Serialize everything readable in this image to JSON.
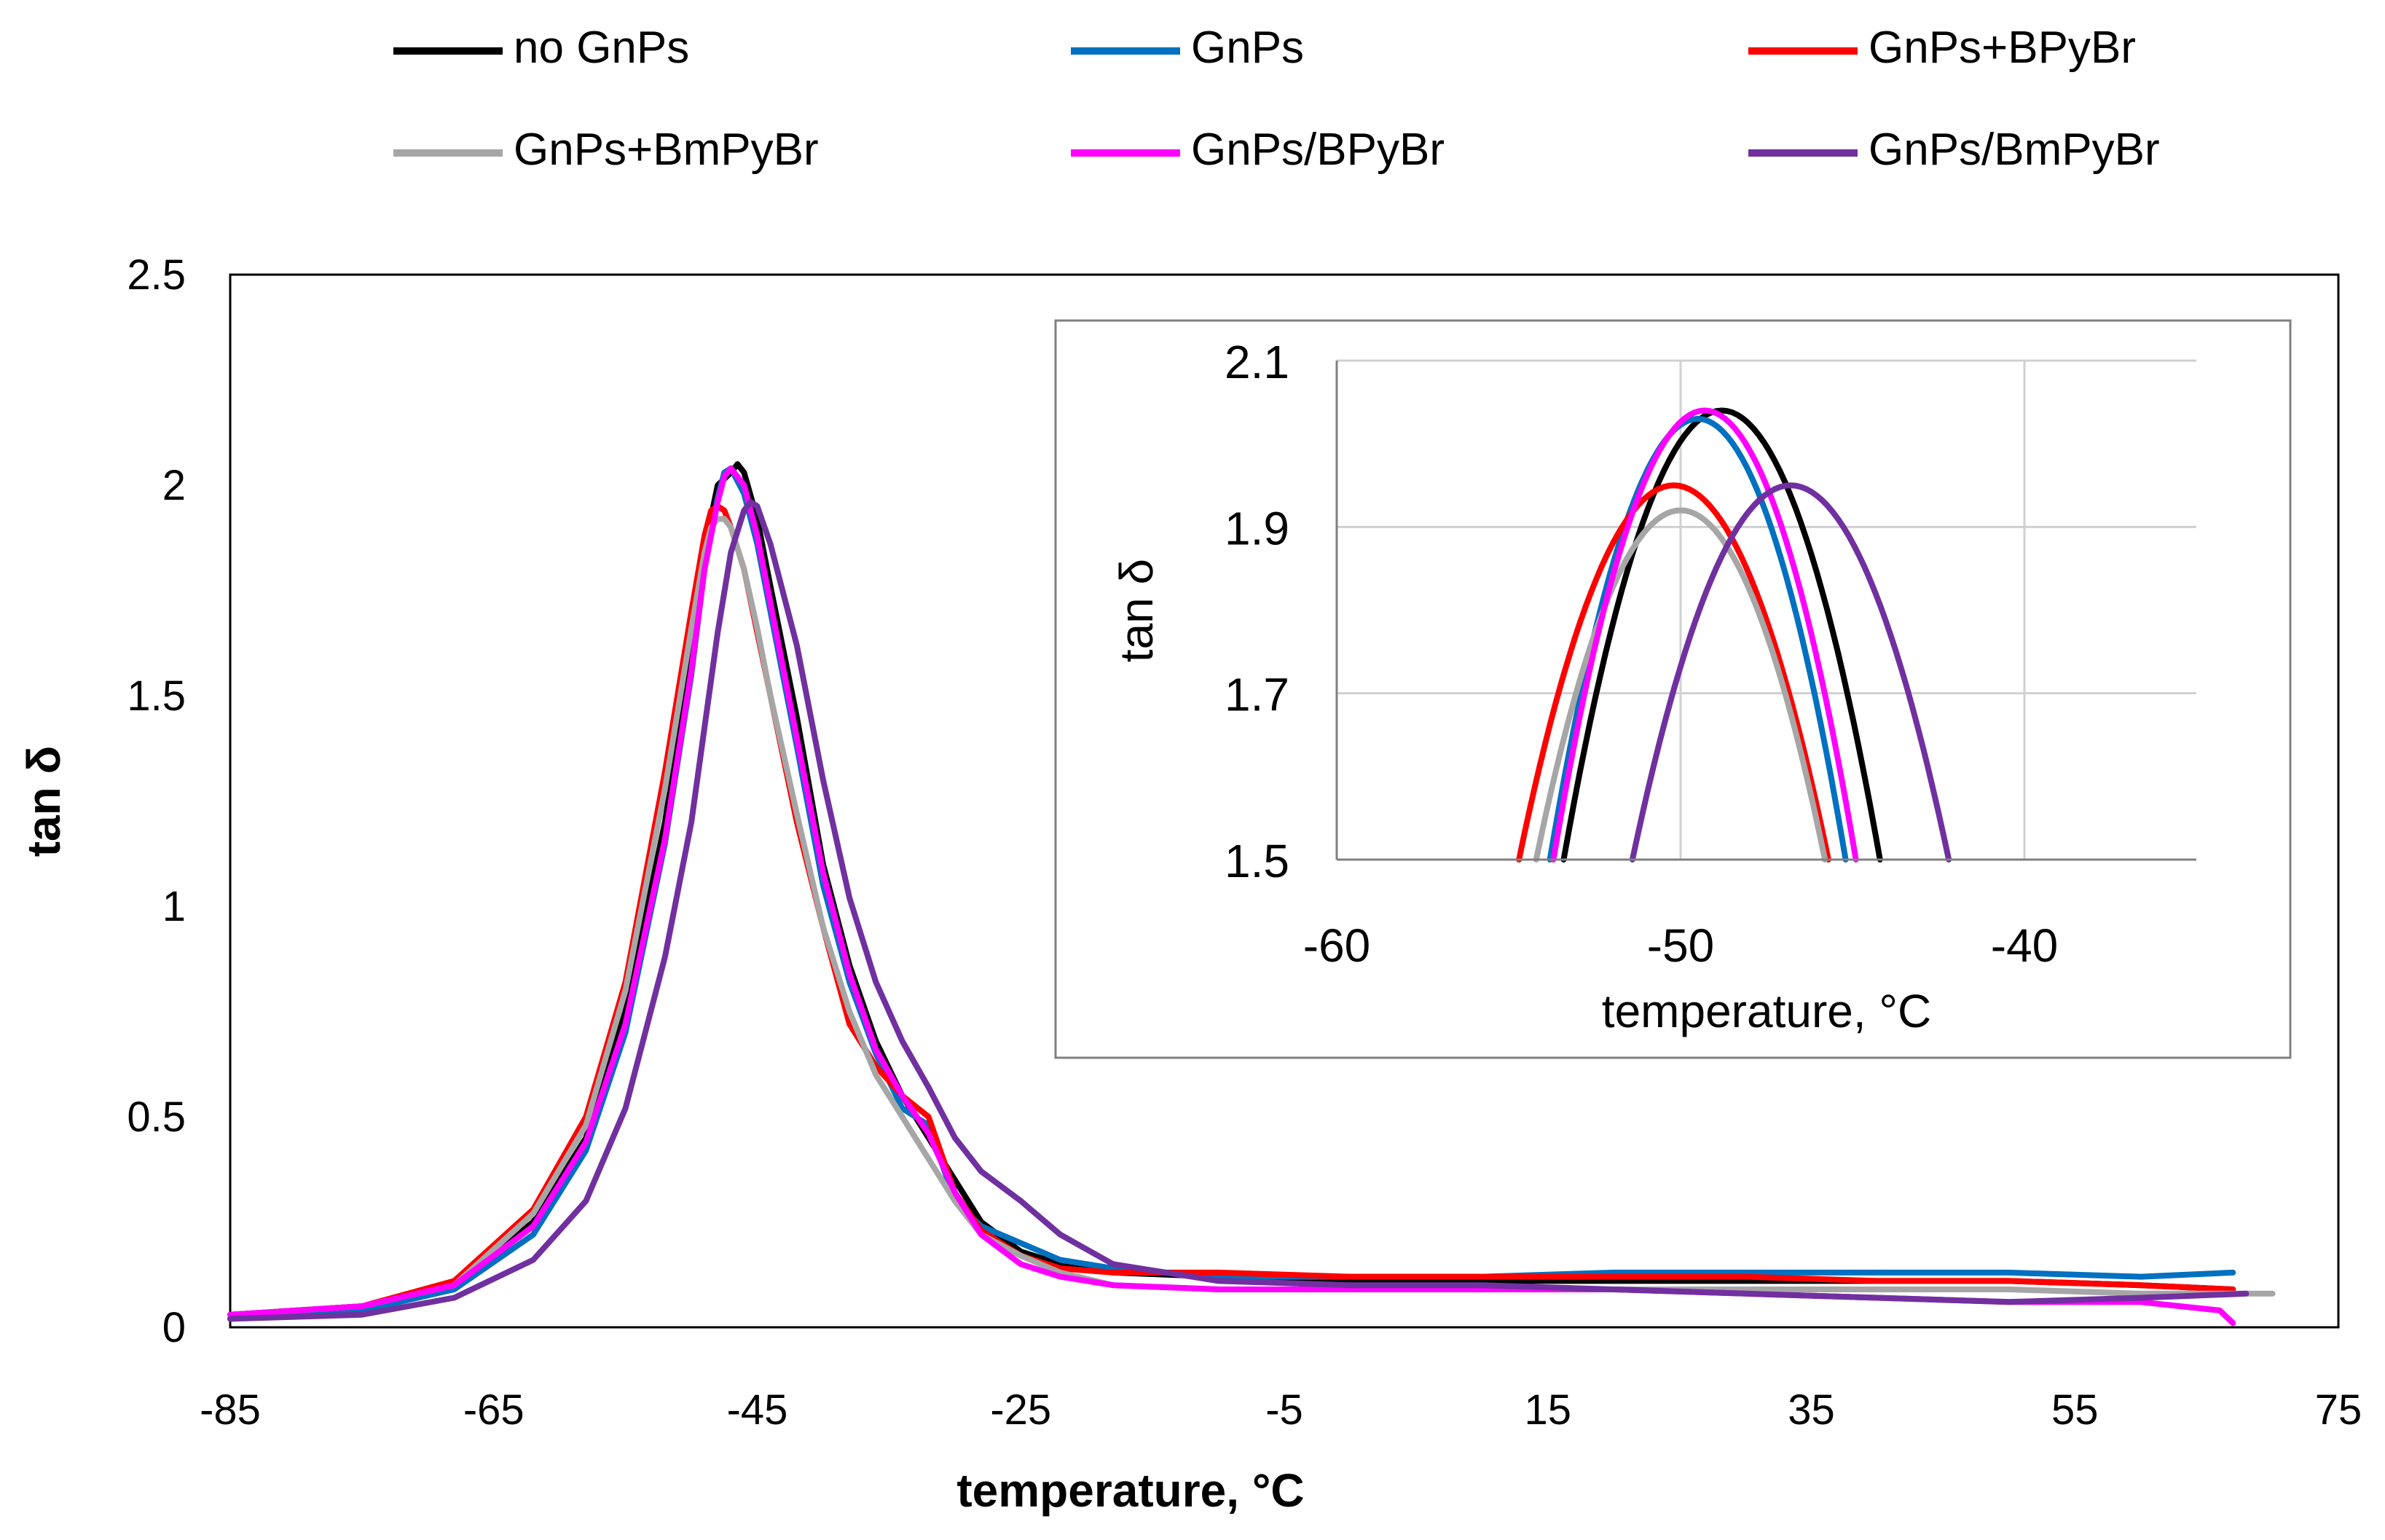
{
  "chart_data": [
    {
      "id": "main",
      "type": "line",
      "title": "",
      "xlabel": "temperature, °C",
      "ylabel": "tan δ",
      "xlim": [
        -85,
        75
      ],
      "ylim": [
        0,
        2.5
      ],
      "x_ticks": [
        "-85",
        "-65",
        "-45",
        "-25",
        "-5",
        "15",
        "35",
        "55",
        "75"
      ],
      "y_ticks": [
        "0",
        "0.5",
        "1",
        "1.5",
        "2",
        "2.5"
      ],
      "grid": false,
      "legend_position": "top",
      "series": [
        {
          "name": "no GnPs",
          "color": "#000000",
          "x": [
            -85,
            -75,
            -68,
            -62,
            -58,
            -55,
            -52,
            -50,
            -49,
            -48,
            -47,
            -46.5,
            -46,
            -45,
            -44,
            -42,
            -40,
            -38,
            -36,
            -34,
            -32,
            -30,
            -28,
            -25,
            -22,
            -18,
            -10,
            0,
            10,
            20,
            30,
            40,
            50,
            60,
            67
          ],
          "y": [
            0.03,
            0.05,
            0.1,
            0.25,
            0.45,
            0.75,
            1.2,
            1.6,
            1.85,
            2.0,
            2.03,
            2.05,
            2.03,
            1.92,
            1.76,
            1.45,
            1.1,
            0.86,
            0.68,
            0.55,
            0.45,
            0.35,
            0.25,
            0.18,
            0.15,
            0.13,
            0.12,
            0.11,
            0.11,
            0.11,
            0.11,
            0.11,
            0.11,
            0.1,
            0.09
          ]
        },
        {
          "name": "GnPs",
          "color": "#0070C0",
          "x": [
            -85,
            -75,
            -68,
            -62,
            -58,
            -55,
            -52,
            -50,
            -49,
            -48,
            -47.5,
            -47,
            -46,
            -45,
            -44,
            -42,
            -40,
            -38,
            -36,
            -34,
            -32,
            -30,
            -28,
            -25,
            -22,
            -18,
            -10,
            0,
            10,
            20,
            30,
            40,
            50,
            60,
            67
          ],
          "y": [
            0.02,
            0.04,
            0.09,
            0.22,
            0.42,
            0.7,
            1.15,
            1.55,
            1.8,
            1.97,
            2.03,
            2.04,
            1.98,
            1.86,
            1.7,
            1.38,
            1.05,
            0.82,
            0.65,
            0.52,
            0.48,
            0.3,
            0.24,
            0.2,
            0.16,
            0.14,
            0.12,
            0.12,
            0.12,
            0.13,
            0.13,
            0.13,
            0.13,
            0.12,
            0.13
          ]
        },
        {
          "name": "GnPs+BPyBr",
          "color": "#FF0000",
          "x": [
            -85,
            -75,
            -68,
            -62,
            -58,
            -55,
            -52,
            -50,
            -49,
            -48.5,
            -48,
            -47.5,
            -47,
            -46,
            -45,
            -44,
            -42,
            -40,
            -38,
            -36,
            -34,
            -32,
            -30,
            -28,
            -25,
            -22,
            -18,
            -10,
            0,
            10,
            20,
            30,
            40,
            50,
            60,
            67
          ],
          "y": [
            0.03,
            0.05,
            0.11,
            0.28,
            0.5,
            0.82,
            1.32,
            1.7,
            1.88,
            1.94,
            1.95,
            1.94,
            1.9,
            1.8,
            1.65,
            1.5,
            1.2,
            0.95,
            0.72,
            0.62,
            0.55,
            0.5,
            0.32,
            0.23,
            0.17,
            0.14,
            0.13,
            0.13,
            0.12,
            0.12,
            0.12,
            0.12,
            0.11,
            0.11,
            0.1,
            0.09
          ]
        },
        {
          "name": "GnPs+BmPyBr",
          "color": "#A6A6A6",
          "x": [
            -85,
            -75,
            -68,
            -62,
            -58,
            -55,
            -52,
            -50,
            -49,
            -48.5,
            -48,
            -47.5,
            -47,
            -46,
            -45,
            -44,
            -42,
            -40,
            -38,
            -36,
            -34,
            -32,
            -30,
            -28,
            -25,
            -22,
            -18,
            -10,
            0,
            10,
            20,
            30,
            40,
            50,
            60,
            70
          ],
          "y": [
            0.03,
            0.05,
            0.1,
            0.27,
            0.48,
            0.8,
            1.28,
            1.66,
            1.84,
            1.9,
            1.92,
            1.92,
            1.9,
            1.8,
            1.66,
            1.5,
            1.22,
            0.95,
            0.75,
            0.6,
            0.5,
            0.4,
            0.3,
            0.22,
            0.17,
            0.13,
            0.1,
            0.09,
            0.09,
            0.09,
            0.09,
            0.09,
            0.09,
            0.09,
            0.08,
            0.08
          ]
        },
        {
          "name": "GnPs/BPyBr",
          "color": "#FF00FF",
          "x": [
            -85,
            -75,
            -68,
            -62,
            -58,
            -55,
            -52,
            -50,
            -49,
            -48,
            -47.5,
            -47,
            -46,
            -45,
            -44,
            -42,
            -40,
            -38,
            -36,
            -34,
            -32,
            -30,
            -28,
            -25,
            -22,
            -18,
            -10,
            0,
            10,
            20,
            30,
            40,
            50,
            60,
            66,
            67
          ],
          "y": [
            0.03,
            0.05,
            0.1,
            0.24,
            0.44,
            0.72,
            1.16,
            1.56,
            1.8,
            1.96,
            2.02,
            2.04,
            2.0,
            1.88,
            1.72,
            1.4,
            1.08,
            0.84,
            0.66,
            0.55,
            0.46,
            0.32,
            0.22,
            0.15,
            0.12,
            0.1,
            0.09,
            0.09,
            0.09,
            0.09,
            0.08,
            0.07,
            0.06,
            0.06,
            0.04,
            0.01
          ]
        },
        {
          "name": "GnPs/BmPyBr",
          "color": "#7030A0",
          "x": [
            -85,
            -75,
            -68,
            -62,
            -58,
            -55,
            -52,
            -50,
            -48,
            -47,
            -46,
            -45.5,
            -45,
            -44,
            -42,
            -40,
            -38,
            -36,
            -34,
            -32,
            -30,
            -28,
            -25,
            -22,
            -18,
            -10,
            0,
            10,
            20,
            30,
            40,
            50,
            60,
            68
          ],
          "y": [
            0.02,
            0.03,
            0.07,
            0.16,
            0.3,
            0.52,
            0.88,
            1.2,
            1.65,
            1.84,
            1.94,
            1.96,
            1.95,
            1.86,
            1.62,
            1.3,
            1.02,
            0.82,
            0.68,
            0.57,
            0.45,
            0.37,
            0.3,
            0.22,
            0.15,
            0.11,
            0.1,
            0.1,
            0.09,
            0.08,
            0.07,
            0.06,
            0.07,
            0.08
          ]
        }
      ]
    },
    {
      "id": "inset",
      "type": "line",
      "title": "",
      "xlabel": "temperature, °C",
      "ylabel": "tan δ",
      "xlim": [
        -60,
        -35
      ],
      "ylim": [
        1.5,
        2.1
      ],
      "x_ticks": [
        "-60",
        "-50",
        "-40"
      ],
      "y_ticks": [
        "1.5",
        "1.7",
        "1.9",
        "2.1"
      ],
      "grid": true,
      "series": [
        {
          "name": "no GnPs",
          "color": "#000000",
          "peak_x": -48.8,
          "peak_y": 2.04,
          "width": 4.6
        },
        {
          "name": "GnPs",
          "color": "#0070C0",
          "peak_x": -49.5,
          "peak_y": 2.03,
          "width": 4.3
        },
        {
          "name": "GnPs+BPyBr",
          "color": "#FF0000",
          "peak_x": -50.2,
          "peak_y": 1.95,
          "width": 4.5
        },
        {
          "name": "GnPs+BmPyBr",
          "color": "#A6A6A6",
          "peak_x": -50.0,
          "peak_y": 1.92,
          "width": 4.2
        },
        {
          "name": "GnPs/BPyBr",
          "color": "#FF00FF",
          "peak_x": -49.3,
          "peak_y": 2.04,
          "width": 4.4
        },
        {
          "name": "GnPs/BmPyBr",
          "color": "#7030A0",
          "peak_x": -46.8,
          "peak_y": 1.95,
          "width": 4.6
        }
      ]
    }
  ]
}
